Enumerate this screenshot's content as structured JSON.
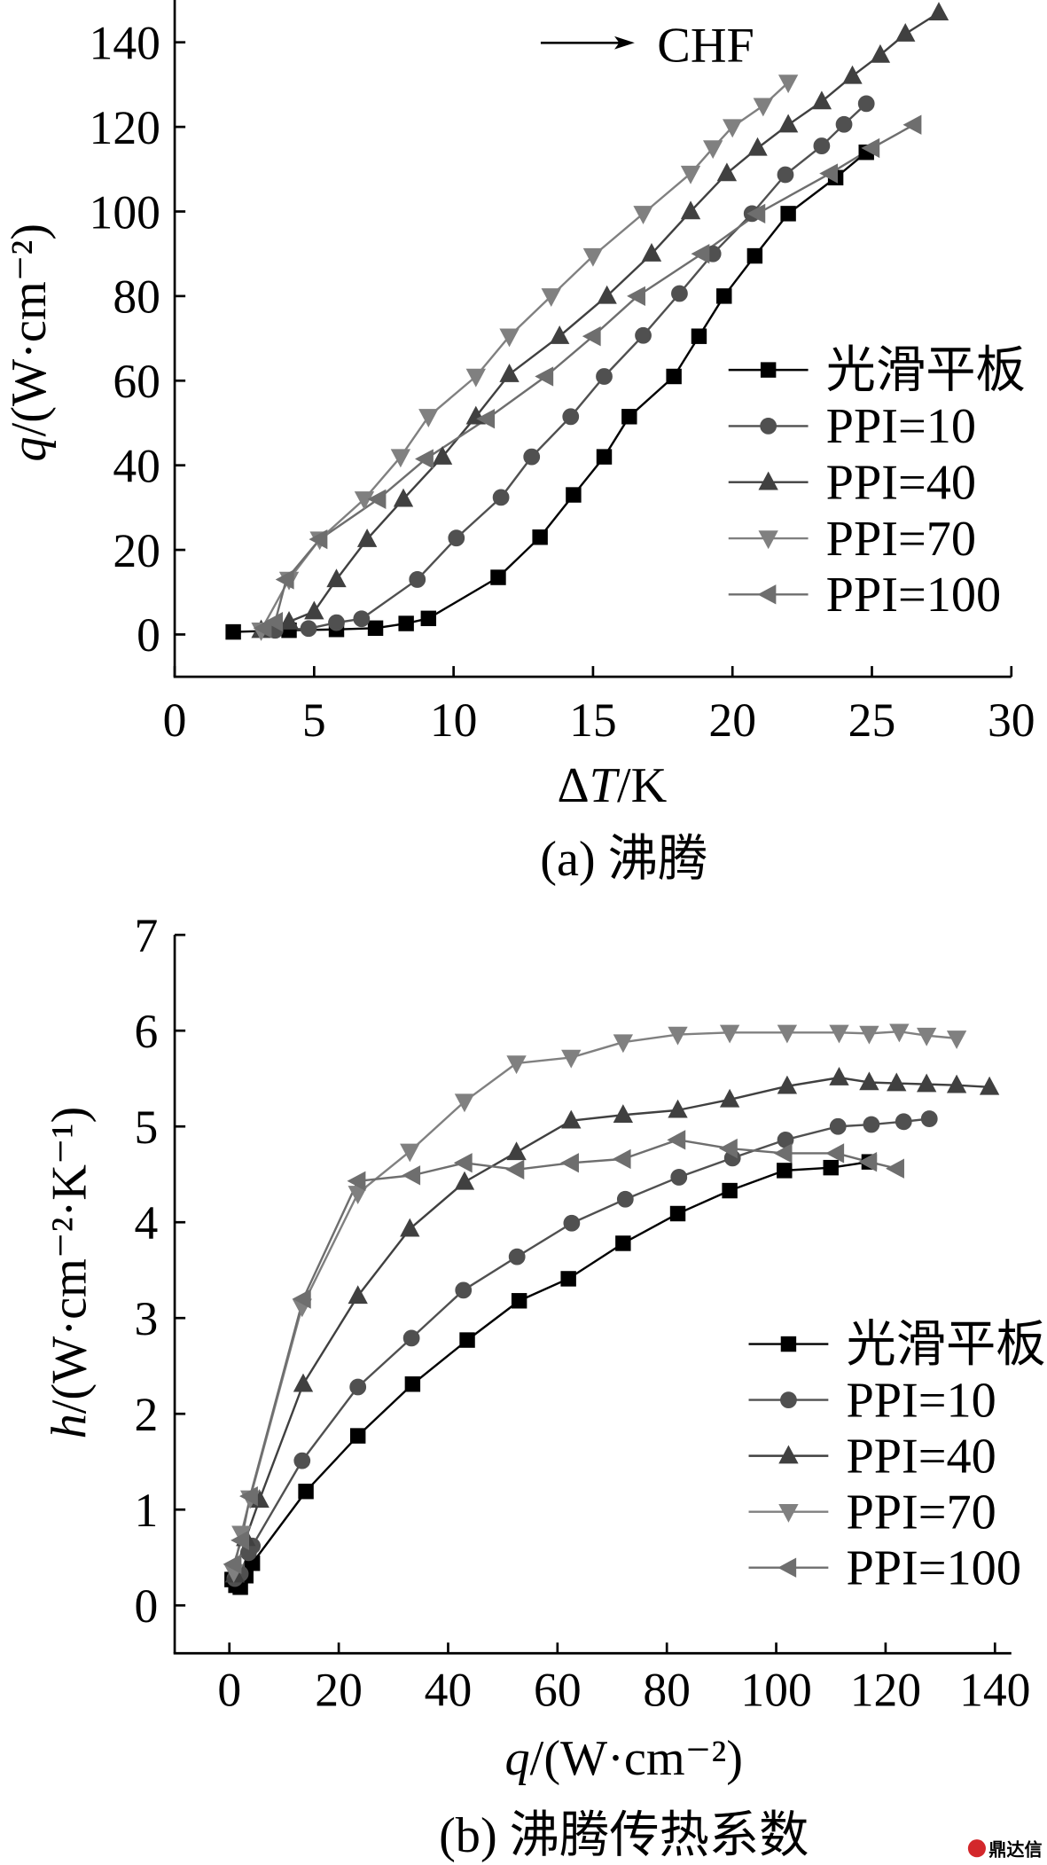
{
  "chart_data": [
    {
      "type": "line",
      "caption": "(a) 沸腾",
      "xlabel": {
        "pre": "Δ",
        "var": "T",
        "post": "/K"
      },
      "ylabel": {
        "pre": "",
        "var": "q",
        "post": "/(W·cm⁻²)"
      },
      "xlim": [
        0,
        30
      ],
      "ylim": [
        -10,
        150
      ],
      "xticks": [
        0,
        5,
        10,
        15,
        20,
        25,
        30
      ],
      "yticks": [
        0,
        20,
        40,
        60,
        80,
        100,
        120,
        140
      ],
      "grid": false,
      "legend_position": "center-right",
      "annotations": [
        "CHF"
      ],
      "series": [
        {
          "name": "光滑平板",
          "marker": "square",
          "color": "#000000",
          "points": [
            [
              2.1,
              0.6
            ],
            [
              4.1,
              1.0
            ],
            [
              5.8,
              1.2
            ],
            [
              7.2,
              1.5
            ],
            [
              8.3,
              2.6
            ],
            [
              9.1,
              3.8
            ],
            [
              11.6,
              13.5
            ],
            [
              13.1,
              23
            ],
            [
              14.3,
              33
            ],
            [
              15.4,
              42
            ],
            [
              16.3,
              51.5
            ],
            [
              17.9,
              61
            ],
            [
              18.8,
              70.5
            ],
            [
              19.7,
              80
            ],
            [
              20.8,
              89.5
            ],
            [
              22.0,
              99.5
            ],
            [
              23.7,
              108
            ],
            [
              24.8,
              114
            ]
          ]
        },
        {
          "name": "PPI=10",
          "marker": "circle",
          "color": "#505050",
          "points": [
            [
              3.6,
              1.0
            ],
            [
              4.8,
              1.4
            ],
            [
              5.8,
              2.8
            ],
            [
              6.7,
              3.7
            ],
            [
              8.7,
              13
            ],
            [
              10.1,
              22.8
            ],
            [
              11.7,
              32.4
            ],
            [
              12.8,
              42
            ],
            [
              14.2,
              51.5
            ],
            [
              15.4,
              61
            ],
            [
              16.8,
              70.7
            ],
            [
              18.1,
              80.6
            ],
            [
              19.3,
              90
            ],
            [
              20.7,
              99.5
            ],
            [
              21.9,
              108.7
            ],
            [
              23.2,
              115.5
            ],
            [
              24.0,
              120.6
            ],
            [
              24.8,
              125.5
            ]
          ]
        },
        {
          "name": "PPI=40",
          "marker": "triangle-up",
          "color": "#404040",
          "points": [
            [
              3.1,
              1.0
            ],
            [
              4.1,
              3.0
            ],
            [
              5.0,
              5.4
            ],
            [
              5.8,
              13
            ],
            [
              6.9,
              22.5
            ],
            [
              8.2,
              32
            ],
            [
              9.6,
              42
            ],
            [
              10.8,
              51.5
            ],
            [
              12.0,
              61.5
            ],
            [
              13.8,
              70.5
            ],
            [
              15.5,
              80
            ],
            [
              17.1,
              90
            ],
            [
              18.5,
              100
            ],
            [
              19.8,
              109
            ],
            [
              20.9,
              115
            ],
            [
              22.0,
              120.5
            ],
            [
              23.2,
              126
            ],
            [
              24.3,
              132
            ],
            [
              25.3,
              137
            ],
            [
              26.2,
              142
            ],
            [
              27.4,
              147
            ]
          ]
        },
        {
          "name": "PPI=70",
          "marker": "triangle-down",
          "color": "#808080",
          "points": [
            [
              3.1,
              1.0
            ],
            [
              4.1,
              13
            ],
            [
              5.2,
              22.5
            ],
            [
              6.8,
              32
            ],
            [
              8.1,
              42
            ],
            [
              9.1,
              51.5
            ],
            [
              10.8,
              61
            ],
            [
              12.0,
              70.5
            ],
            [
              13.5,
              80
            ],
            [
              15.0,
              89.5
            ],
            [
              16.8,
              99.5
            ],
            [
              18.5,
              109
            ],
            [
              19.3,
              115
            ],
            [
              20.0,
              120
            ],
            [
              21.1,
              125
            ],
            [
              22.0,
              130.5
            ]
          ]
        },
        {
          "name": "PPI=100",
          "marker": "triangle-left",
          "color": "#6e6e6e",
          "points": [
            [
              3.2,
              1.5
            ],
            [
              3.6,
              3.0
            ],
            [
              4.0,
              13
            ],
            [
              5.2,
              22.5
            ],
            [
              7.3,
              32
            ],
            [
              9.0,
              41.5
            ],
            [
              11.2,
              51
            ],
            [
              13.3,
              61
            ],
            [
              15.0,
              70.5
            ],
            [
              16.6,
              80
            ],
            [
              18.9,
              90
            ],
            [
              20.9,
              99.5
            ],
            [
              23.5,
              109
            ],
            [
              25.0,
              115
            ],
            [
              26.5,
              120.5
            ]
          ]
        }
      ]
    },
    {
      "type": "line",
      "caption": "(b) 沸腾传热系数",
      "xlabel": {
        "pre": "",
        "var": "q",
        "post": "/(W·cm⁻²)"
      },
      "ylabel": {
        "pre": "",
        "var": "h",
        "post": "/(W·cm⁻²·K⁻¹)"
      },
      "xlim": [
        -10,
        143
      ],
      "ylim": [
        -0.5,
        7
      ],
      "xticks": [
        0,
        20,
        40,
        60,
        80,
        100,
        120,
        140
      ],
      "yticks": [
        0,
        1,
        2,
        3,
        4,
        5,
        6,
        7
      ],
      "grid": false,
      "legend_position": "bottom-right",
      "series": [
        {
          "name": "光滑平板",
          "marker": "square",
          "color": "#000000",
          "points": [
            [
              0.5,
              0.27
            ],
            [
              1.2,
              0.21
            ],
            [
              2.0,
              0.19
            ],
            [
              3.0,
              0.31
            ],
            [
              4.2,
              0.44
            ],
            [
              14,
              1.19
            ],
            [
              23.5,
              1.77
            ],
            [
              33.5,
              2.31
            ],
            [
              43.5,
              2.77
            ],
            [
              53,
              3.18
            ],
            [
              62,
              3.41
            ],
            [
              72,
              3.78
            ],
            [
              82,
              4.09
            ],
            [
              91.5,
              4.33
            ],
            [
              101.5,
              4.54
            ],
            [
              110,
              4.57
            ],
            [
              117,
              4.63
            ]
          ]
        },
        {
          "name": "PPI=10",
          "marker": "circle",
          "color": "#505050",
          "points": [
            [
              1,
              0.28
            ],
            [
              2,
              0.33
            ],
            [
              3.5,
              0.55
            ],
            [
              4.2,
              0.62
            ],
            [
              13.3,
              1.51
            ],
            [
              23.5,
              2.28
            ],
            [
              33.3,
              2.79
            ],
            [
              42.8,
              3.29
            ],
            [
              52.6,
              3.64
            ],
            [
              62.6,
              3.99
            ],
            [
              72.4,
              4.24
            ],
            [
              82.2,
              4.47
            ],
            [
              92,
              4.67
            ],
            [
              101.7,
              4.86
            ],
            [
              111.3,
              5.0
            ],
            [
              117.4,
              5.02
            ],
            [
              123.3,
              5.05
            ],
            [
              128,
              5.08
            ]
          ]
        },
        {
          "name": "PPI=40",
          "marker": "triangle-up",
          "color": "#404040",
          "points": [
            [
              1,
              0.32
            ],
            [
              3,
              0.7
            ],
            [
              5.5,
              1.1
            ],
            [
              13.5,
              2.31
            ],
            [
              23.5,
              3.23
            ],
            [
              33,
              3.93
            ],
            [
              43,
              4.42
            ],
            [
              52.5,
              4.73
            ],
            [
              62.5,
              5.06
            ],
            [
              72,
              5.12
            ],
            [
              82,
              5.17
            ],
            [
              91.5,
              5.28
            ],
            [
              102,
              5.42
            ],
            [
              111.5,
              5.51
            ],
            [
              117,
              5.46
            ],
            [
              122,
              5.45
            ],
            [
              127.5,
              5.44
            ],
            [
              133,
              5.43
            ],
            [
              139,
              5.41
            ]
          ]
        },
        {
          "name": "PPI=70",
          "marker": "triangle-down",
          "color": "#808080",
          "points": [
            [
              0.8,
              0.35
            ],
            [
              2.2,
              0.75
            ],
            [
              3.8,
              1.12
            ],
            [
              13.3,
              3.12
            ],
            [
              23.5,
              4.3
            ],
            [
              33,
              4.74
            ],
            [
              43,
              5.26
            ],
            [
              52.5,
              5.66
            ],
            [
              62.5,
              5.72
            ],
            [
              72,
              5.88
            ],
            [
              82,
              5.96
            ],
            [
              91.5,
              5.98
            ],
            [
              102,
              5.98
            ],
            [
              111.5,
              5.98
            ],
            [
              117,
              5.97
            ],
            [
              122.5,
              5.99
            ],
            [
              127.5,
              5.95
            ],
            [
              133,
              5.92
            ]
          ]
        },
        {
          "name": "PPI=100",
          "marker": "triangle-left",
          "color": "#6e6e6e",
          "points": [
            [
              0.8,
              0.43
            ],
            [
              2.2,
              0.68
            ],
            [
              3.8,
              1.14
            ],
            [
              13.5,
              3.2
            ],
            [
              23.5,
              4.43
            ],
            [
              33.5,
              4.49
            ],
            [
              43,
              4.62
            ],
            [
              52.5,
              4.55
            ],
            [
              62.5,
              4.62
            ],
            [
              72,
              4.66
            ],
            [
              82,
              4.86
            ],
            [
              91.5,
              4.77
            ],
            [
              101.5,
              4.72
            ],
            [
              111,
              4.72
            ],
            [
              117,
              4.63
            ],
            [
              122,
              4.56
            ]
          ]
        }
      ]
    }
  ],
  "watermark": {
    "text": "鼎达信",
    "color": "#d3272b"
  }
}
